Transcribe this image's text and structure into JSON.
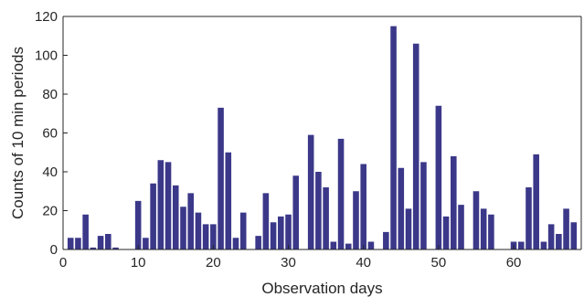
{
  "chart_data": {
    "type": "bar",
    "xlabel": "Observation days",
    "ylabel": "Counts of 10 min periods",
    "xlim": [
      0,
      69
    ],
    "ylim": [
      0,
      120
    ],
    "xticks": [
      0,
      10,
      20,
      30,
      40,
      50,
      60
    ],
    "yticks": [
      0,
      20,
      40,
      60,
      80,
      100,
      120
    ],
    "grid": false,
    "bar_color": "#3b3889",
    "x": [
      1,
      2,
      3,
      4,
      5,
      6,
      7,
      8,
      9,
      10,
      11,
      12,
      13,
      14,
      15,
      16,
      17,
      18,
      19,
      20,
      21,
      22,
      23,
      24,
      25,
      26,
      27,
      28,
      29,
      30,
      31,
      32,
      33,
      34,
      35,
      36,
      37,
      38,
      39,
      40,
      41,
      42,
      43,
      44,
      45,
      46,
      47,
      48,
      49,
      50,
      51,
      52,
      53,
      54,
      55,
      56,
      57,
      58,
      59,
      60,
      61,
      62,
      63,
      64,
      65,
      66,
      67,
      68
    ],
    "values": [
      6,
      6,
      18,
      1,
      7,
      8,
      1,
      0,
      0,
      25,
      6,
      34,
      46,
      45,
      33,
      22,
      29,
      19,
      13,
      13,
      73,
      50,
      6,
      19,
      0,
      7,
      29,
      14,
      17,
      18,
      38,
      0,
      59,
      40,
      32,
      4,
      57,
      3,
      30,
      44,
      4,
      0,
      9,
      115,
      42,
      21,
      106,
      45,
      0,
      74,
      17,
      48,
      23,
      0,
      30,
      21,
      18,
      0,
      0,
      4,
      4,
      32,
      49,
      4,
      13,
      8,
      21,
      14
    ]
  }
}
